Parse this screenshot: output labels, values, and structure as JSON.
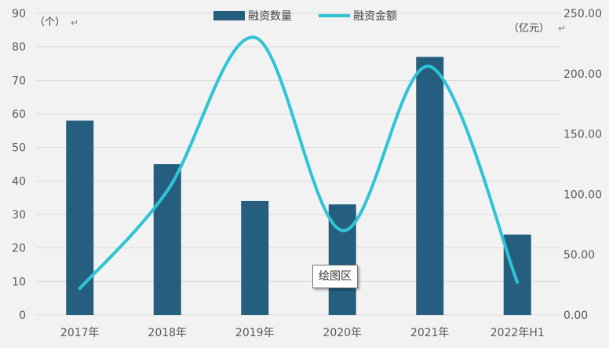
{
  "chart_data": {
    "type": "bar",
    "categories": [
      "2017年",
      "2018年",
      "2019年",
      "2020年",
      "2021年",
      "2022年H1"
    ],
    "series": [
      {
        "name": "融资数量",
        "type": "bar",
        "axis": "left",
        "color": "#255e7e",
        "values": [
          58,
          45,
          34,
          33,
          77,
          24
        ]
      },
      {
        "name": "融资金额",
        "type": "line",
        "axis": "right",
        "smooth": true,
        "color": "#2ec4d6",
        "values": [
          22,
          103,
          230,
          70,
          206,
          27
        ]
      }
    ],
    "y_left": {
      "unit": "（个）",
      "range": [
        0,
        90
      ],
      "ticks": [
        0,
        10,
        20,
        30,
        40,
        50,
        60,
        70,
        80,
        90
      ]
    },
    "y_right": {
      "unit": "（亿元）",
      "range": [
        0,
        250
      ],
      "ticks": [
        "0.00",
        "50.00",
        "100.00",
        "150.00",
        "200.00",
        "250.00"
      ]
    },
    "grid": true,
    "legend": {
      "position": "top-center"
    }
  },
  "tooltip": "绘图区",
  "paragraph_mark": "↵",
  "gridline_color": "#d9d9d9"
}
